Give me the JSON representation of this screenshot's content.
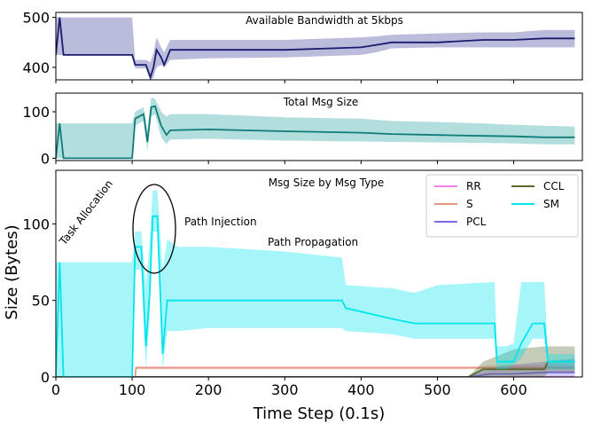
{
  "chart_data": [
    {
      "type": "line",
      "title": "Available Bandwidth at 5kbps",
      "xlabel": "",
      "ylabel": "",
      "xlim": [
        0,
        690
      ],
      "ylim": [
        375,
        510
      ],
      "x_ticks": [
        0,
        100,
        200,
        300,
        400,
        500,
        600
      ],
      "y_ticks": [
        400,
        500
      ],
      "x_tick_labels_shown": false,
      "color": "#1a1a6e",
      "band_color": "#3b3b9a",
      "series": [
        {
          "x": [
            0,
            5,
            10,
            100,
            104,
            118,
            124,
            128,
            132,
            138,
            142,
            150,
            200,
            300,
            400,
            420,
            440,
            500,
            560,
            600,
            640,
            680
          ],
          "y": [
            425,
            500,
            425,
            425,
            405,
            405,
            380,
            400,
            435,
            420,
            405,
            435,
            435,
            435,
            440,
            445,
            450,
            450,
            455,
            455,
            458,
            458
          ],
          "band_low": [
            425,
            425,
            425,
            425,
            398,
            398,
            372,
            380,
            400,
            405,
            400,
            415,
            418,
            420,
            425,
            430,
            438,
            440,
            440,
            440,
            440,
            440
          ],
          "band_high": [
            500,
            500,
            500,
            500,
            415,
            415,
            410,
            430,
            460,
            440,
            430,
            455,
            455,
            455,
            460,
            462,
            465,
            468,
            470,
            470,
            475,
            475
          ]
        }
      ]
    },
    {
      "type": "line",
      "title": "Total Msg Size",
      "xlabel": "",
      "ylabel": "",
      "xlim": [
        0,
        690
      ],
      "ylim": [
        -5,
        140
      ],
      "x_ticks": [
        0,
        100,
        200,
        300,
        400,
        500,
        600
      ],
      "y_ticks": [
        0,
        100
      ],
      "x_tick_labels_shown": false,
      "color": "#0e7c7b",
      "band_color": "#22a39e",
      "series": [
        {
          "x": [
            0,
            5,
            10,
            100,
            104,
            115,
            120,
            125,
            130,
            138,
            145,
            150,
            200,
            300,
            400,
            440,
            500,
            560,
            600,
            640,
            680
          ],
          "y": [
            0,
            75,
            0,
            0,
            85,
            95,
            35,
            110,
            112,
            70,
            50,
            60,
            62,
            58,
            55,
            52,
            50,
            48,
            47,
            45,
            45
          ],
          "band_low": [
            0,
            0,
            0,
            0,
            70,
            80,
            15,
            90,
            95,
            45,
            30,
            40,
            42,
            38,
            36,
            35,
            34,
            33,
            32,
            30,
            30
          ],
          "band_high": [
            75,
            75,
            75,
            75,
            100,
            110,
            60,
            130,
            128,
            100,
            90,
            95,
            95,
            88,
            85,
            80,
            78,
            75,
            72,
            70,
            68
          ]
        }
      ]
    },
    {
      "type": "line",
      "title": "Msg Size by Msg Type",
      "xlabel": "Time Step (0.1s)",
      "ylabel": "Size (Bytes)",
      "xlim": [
        0,
        690
      ],
      "ylim": [
        0,
        135
      ],
      "x_ticks": [
        0,
        100,
        200,
        300,
        400,
        500,
        600
      ],
      "y_ticks": [
        0,
        50,
        100
      ],
      "legend": "top-right",
      "annotations": [
        "Task Allocation",
        "Path Injection",
        "Path Propagation"
      ],
      "series": [
        {
          "name": "RR",
          "color": "#ee82ee",
          "x": [
            0,
            680
          ],
          "y": [
            0,
            0
          ],
          "band_low": [
            0,
            0
          ],
          "band_high": [
            0,
            0
          ]
        },
        {
          "name": "S",
          "color": "#e8957e",
          "x": [
            0,
            104,
            105,
            560,
            570,
            600,
            640,
            680
          ],
          "y": [
            0,
            0,
            6,
            6,
            6,
            6,
            6,
            6
          ],
          "band_low": [
            0,
            0,
            5,
            5,
            5,
            5,
            5,
            5
          ],
          "band_high": [
            0,
            0,
            7,
            7,
            8,
            8,
            8,
            8
          ]
        },
        {
          "name": "PCL",
          "color": "#7b68ee",
          "x": [
            0,
            540,
            570,
            600,
            640,
            680
          ],
          "y": [
            0,
            0,
            2,
            2,
            3,
            3
          ],
          "band_low": [
            0,
            0,
            0,
            0,
            0,
            0
          ],
          "band_high": [
            0,
            0,
            6,
            8,
            10,
            12
          ]
        },
        {
          "name": "CCL",
          "color": "#556b2f",
          "x": [
            0,
            540,
            560,
            600,
            640,
            645,
            680
          ],
          "y": [
            0,
            0,
            5,
            5,
            5,
            10,
            10
          ],
          "band_low": [
            0,
            0,
            0,
            0,
            0,
            3,
            3
          ],
          "band_high": [
            0,
            0,
            10,
            18,
            20,
            20,
            20
          ]
        },
        {
          "name": "SM",
          "color": "#00e5ee",
          "x": [
            0,
            5,
            10,
            100,
            104,
            112,
            118,
            123,
            127,
            133,
            140,
            146,
            160,
            200,
            300,
            375,
            380,
            440,
            470,
            500,
            575,
            578,
            590,
            600,
            610,
            625,
            640,
            645,
            660,
            680
          ],
          "y": [
            0,
            75,
            0,
            0,
            85,
            85,
            20,
            55,
            105,
            105,
            15,
            50,
            50,
            50,
            50,
            50,
            45,
            38,
            35,
            35,
            35,
            10,
            10,
            10,
            22,
            35,
            35,
            10,
            10,
            10
          ],
          "band_low": [
            0,
            0,
            0,
            0,
            70,
            70,
            5,
            40,
            95,
            95,
            5,
            30,
            30,
            32,
            32,
            32,
            30,
            28,
            25,
            25,
            25,
            5,
            5,
            8,
            12,
            25,
            25,
            5,
            5,
            5
          ],
          "band_high": [
            75,
            75,
            75,
            75,
            95,
            95,
            60,
            90,
            122,
            122,
            70,
            90,
            85,
            85,
            82,
            78,
            60,
            58,
            55,
            60,
            62,
            20,
            20,
            22,
            62,
            62,
            62,
            15,
            15,
            15
          ]
        }
      ]
    }
  ],
  "legend_title": "",
  "annotation_task": "Task Allocation",
  "annotation_injection": "Path Injection",
  "annotation_propagation": "Path Propagation"
}
